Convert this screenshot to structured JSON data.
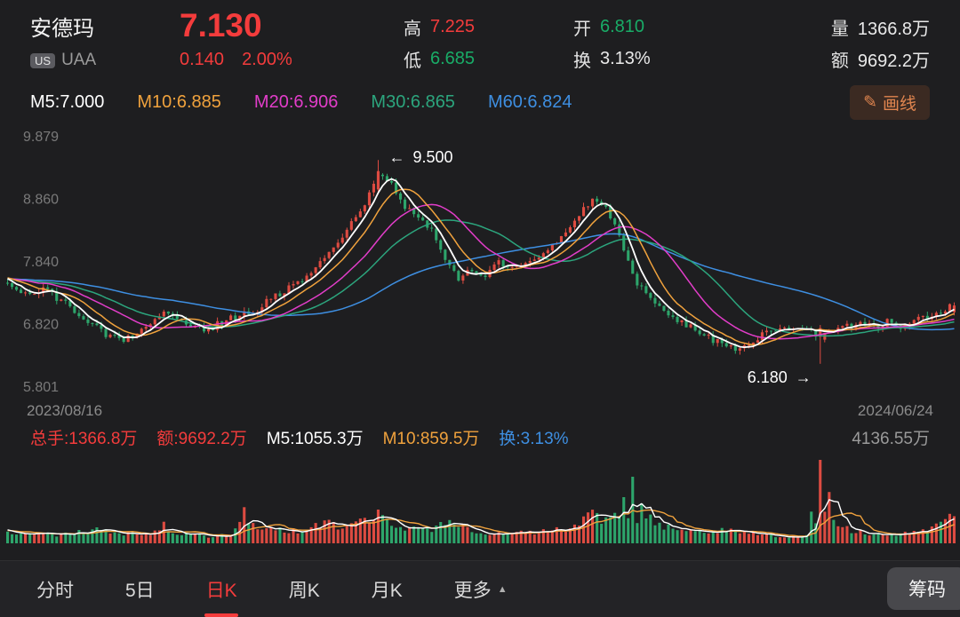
{
  "colors": {
    "up": "#f43c3c",
    "down": "#19ac67",
    "neutral": "#e9e9e9",
    "candle_up": "#dd4b41",
    "candle_down": "#2da56b",
    "ma5": "#ffffff",
    "ma10": "#f0a23d",
    "ma20": "#e23dc9",
    "ma30": "#2ca57d",
    "ma60": "#3e8fe2",
    "axis_text": "#7a7a7a",
    "annotation_text": "#ffffff",
    "draw_button_text": "#e0854f"
  },
  "header": {
    "stock_name": "安德玛",
    "market_badge": "US",
    "ticker": "UAA",
    "price": "7.130",
    "change_abs": "0.140",
    "change_pct": "2.00%",
    "stats": [
      {
        "label": "高",
        "value": "7.225",
        "color": "#f43c3c"
      },
      {
        "label": "低",
        "value": "6.685",
        "color": "#19ac67"
      },
      {
        "label": "开",
        "value": "6.810",
        "color": "#19ac67"
      },
      {
        "label": "换",
        "value": "3.13%",
        "color": "#e9e9e9"
      },
      {
        "label": "量",
        "value": "1366.8万",
        "color": "#e9e9e9"
      },
      {
        "label": "额",
        "value": "9692.2万",
        "color": "#e9e9e9"
      }
    ]
  },
  "ma_row": {
    "items": [
      {
        "label": "M5:7.000",
        "color": "#ffffff"
      },
      {
        "label": "M10:6.885",
        "color": "#f0a23d"
      },
      {
        "label": "M20:6.906",
        "color": "#e23dc9"
      },
      {
        "label": "M30:6.865",
        "color": "#2ca57d"
      },
      {
        "label": "M60:6.824",
        "color": "#3e8fe2"
      }
    ],
    "draw_button": {
      "icon": "✎",
      "label": "画线"
    }
  },
  "chart_data": {
    "type": "candlestick",
    "title": "安德玛 (UAA) 日K",
    "date_range": [
      "2023/08/16",
      "2024/06/24"
    ],
    "y_axis_labels": [
      "9.879",
      "8.860",
      "7.840",
      "6.820",
      "5.801"
    ],
    "y_min": 5.801,
    "y_max": 9.879,
    "last_close": 7.13,
    "candles_per_anchor": 3,
    "close_anchors": [
      7.5,
      7.42,
      7.32,
      7.4,
      7.26,
      7.12,
      6.94,
      6.76,
      6.62,
      6.55,
      6.68,
      6.86,
      7.0,
      6.92,
      6.8,
      6.72,
      6.82,
      6.92,
      6.98,
      7.06,
      7.28,
      7.36,
      7.52,
      7.66,
      7.95,
      8.15,
      8.45,
      8.8,
      9.3,
      9.1,
      8.72,
      8.55,
      8.35,
      7.9,
      7.58,
      7.72,
      7.6,
      7.82,
      7.74,
      7.86,
      7.95,
      8.1,
      8.32,
      8.6,
      8.85,
      8.72,
      8.25,
      7.62,
      7.28,
      7.1,
      6.95,
      6.82,
      6.7,
      6.56,
      6.46,
      6.4,
      6.56,
      6.7,
      6.76,
      6.72,
      6.78,
      6.62,
      6.76,
      6.8,
      6.82,
      6.78,
      6.86,
      6.8,
      6.88,
      6.94,
      7.04,
      7.13
    ],
    "volume_anchors": [
      650,
      480,
      420,
      520,
      380,
      450,
      600,
      700,
      550,
      480,
      420,
      500,
      900,
      520,
      420,
      380,
      350,
      420,
      1500,
      600,
      800,
      550,
      620,
      700,
      1100,
      850,
      950,
      1200,
      1400,
      1000,
      800,
      700,
      650,
      1200,
      900,
      600,
      500,
      550,
      480,
      520,
      560,
      620,
      700,
      900,
      1600,
      1100,
      1300,
      3300,
      1400,
      900,
      750,
      620,
      580,
      640,
      700,
      560,
      480,
      420,
      380,
      360,
      400,
      4136,
      1200,
      700,
      520,
      460,
      500,
      440,
      520,
      680,
      1400,
      1300
    ],
    "volume_max_value": 4136.55,
    "annotations": {
      "high": {
        "text": "9.500",
        "value": 9.5,
        "anchor_index": 28
      },
      "low": {
        "text": "6.180",
        "value": 6.18,
        "anchor_index": 61
      }
    },
    "moving_averages": {
      "M5": "7.000",
      "M10": "6.885",
      "M20": "6.906",
      "M30": "6.865",
      "M60": "6.824"
    },
    "volume_ma": {
      "M5": "1055.3万",
      "M10": "859.5万"
    },
    "legend_position": "top-left",
    "grid": false
  },
  "x_axis": {
    "start_date": "2023/08/16",
    "end_date": "2024/06/24"
  },
  "volume_panel": {
    "legend": [
      {
        "label": "总手:1366.8万",
        "color": "#f43c3c"
      },
      {
        "label": "额:9692.2万",
        "color": "#f43c3c"
      },
      {
        "label": "M5:1055.3万",
        "color": "#ffffff"
      },
      {
        "label": "M10:859.5万",
        "color": "#f0a23d"
      },
      {
        "label": "换:3.13%",
        "color": "#3e8fe2"
      }
    ],
    "max_label": "4136.55万"
  },
  "tabs": {
    "items": [
      {
        "label": "分时",
        "active": false
      },
      {
        "label": "5日",
        "active": false
      },
      {
        "label": "日K",
        "active": true
      },
      {
        "label": "周K",
        "active": false
      },
      {
        "label": "月K",
        "active": false
      },
      {
        "label": "更多",
        "active": false,
        "icon": "▲"
      }
    ],
    "right_button": "筹码"
  }
}
